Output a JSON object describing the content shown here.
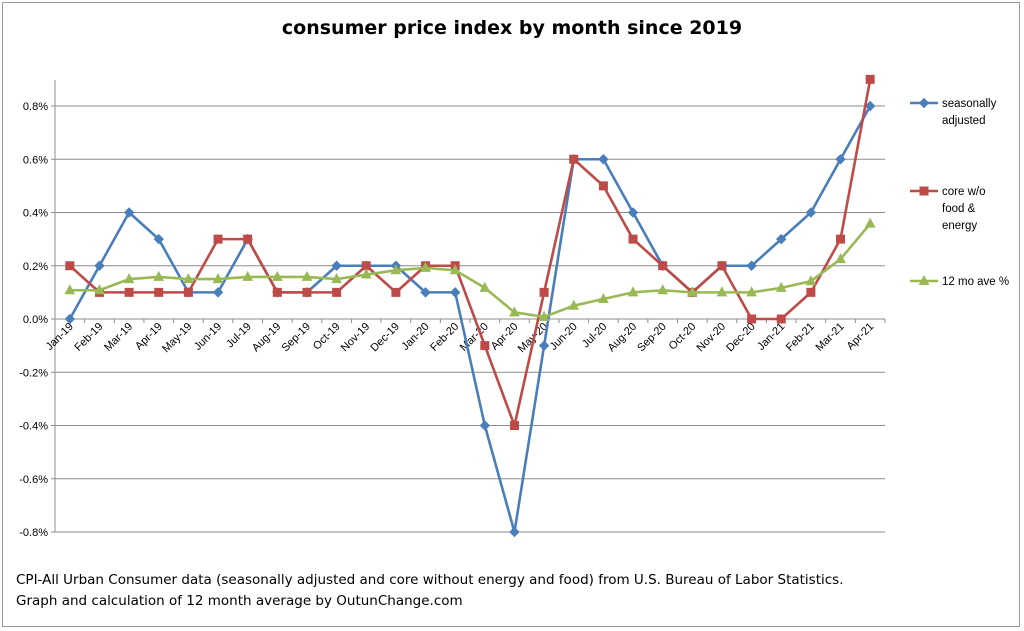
{
  "chart_data": {
    "type": "line",
    "title": "consumer price index by month since 2019",
    "xlabel": "",
    "ylabel": "",
    "categories": [
      "Jan-19",
      "Feb-19",
      "Mar-19",
      "Apr-19",
      "May-19",
      "Jun-19",
      "Jul-19",
      "Aug-19",
      "Sep-19",
      "Oct-19",
      "Nov-19",
      "Dec-19",
      "Jan-20",
      "Feb-20",
      "Mar-20",
      "Apr-20",
      "May-20",
      "Jun-20",
      "Jul-20",
      "Aug-20",
      "Sep-20",
      "Oct-20",
      "Nov-20",
      "Dec-20",
      "Jan-21",
      "Feb-21",
      "Mar-21",
      "Apr-21"
    ],
    "ylim": [
      -0.8,
      0.9
    ],
    "yticks": [
      -0.8,
      -0.6,
      -0.4,
      -0.2,
      0.0,
      0.2,
      0.4,
      0.6,
      0.8
    ],
    "ytick_labels": [
      "-0.8%",
      "-0.6%",
      "-0.4%",
      "-0.2%",
      "0.0%",
      "0.2%",
      "0.4%",
      "0.6%",
      "0.8%"
    ],
    "grid": "horizontal",
    "legend_position": "right",
    "series": [
      {
        "name": "seasonally adjusted",
        "legend_lines": [
          "seasonally",
          "adjusted"
        ],
        "color": "#4a7ebb",
        "marker": "diamond",
        "values": [
          0.0,
          0.2,
          0.4,
          0.3,
          0.1,
          0.1,
          0.3,
          0.1,
          0.1,
          0.2,
          0.2,
          0.2,
          0.1,
          0.1,
          -0.4,
          -0.8,
          -0.1,
          0.6,
          0.6,
          0.4,
          0.2,
          0.1,
          0.2,
          0.2,
          0.3,
          0.4,
          0.6,
          0.8
        ]
      },
      {
        "name": "core w/o food & energy",
        "legend_lines": [
          "core w/o",
          "food &",
          "energy"
        ],
        "color": "#be4b48",
        "marker": "square",
        "values": [
          0.2,
          0.1,
          0.1,
          0.1,
          0.1,
          0.3,
          0.3,
          0.1,
          0.1,
          0.1,
          0.2,
          0.1,
          0.2,
          0.2,
          -0.1,
          -0.4,
          0.1,
          0.6,
          0.5,
          0.3,
          0.2,
          0.1,
          0.2,
          0.0,
          0.0,
          0.1,
          0.3,
          0.9
        ]
      },
      {
        "name": "12 mo ave %",
        "legend_lines": [
          "12 mo ave %"
        ],
        "color": "#98b954",
        "marker": "triangle",
        "values": [
          0.108,
          0.108,
          0.15,
          0.158,
          0.15,
          0.15,
          0.158,
          0.158,
          0.158,
          0.15,
          0.167,
          0.183,
          0.192,
          0.183,
          0.117,
          0.025,
          0.008,
          0.05,
          0.075,
          0.1,
          0.108,
          0.1,
          0.1,
          0.1,
          0.117,
          0.142,
          0.225,
          0.358
        ]
      }
    ]
  },
  "footnote": {
    "line1": "CPI-All Urban Consumer data (seasonally adjusted and core without energy and food) from U.S. Bureau of Labor Statistics.",
    "line2": "Graph and calculation of 12 month average  by OutunChange.com"
  }
}
